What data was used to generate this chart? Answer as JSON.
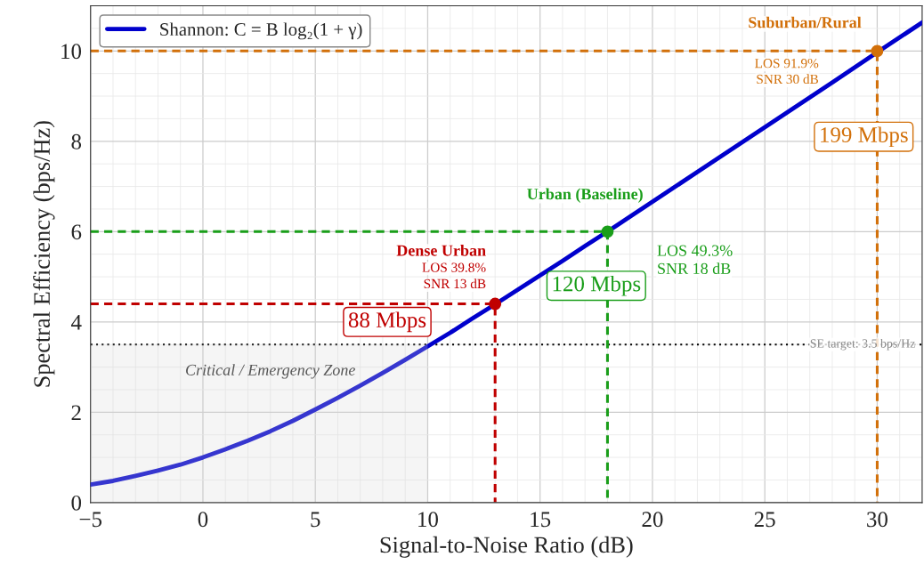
{
  "chart_data": {
    "type": "line",
    "xlabel": "Signal-to-Noise Ratio (dB)",
    "ylabel": "Spectral Efficiency (bps/Hz)",
    "xlim": [
      -5,
      32
    ],
    "ylim": [
      0,
      11
    ],
    "xticks": [
      {
        "value": -5,
        "label": "−5"
      },
      0,
      5,
      10,
      15,
      20,
      25,
      30
    ],
    "yticks": [
      0,
      2,
      4,
      6,
      8,
      10
    ],
    "grid": true,
    "legend": "top left",
    "series": [
      {
        "name": "Shannon: C = B log₂(1 + γ)",
        "color": "#0000cc",
        "line_style": "solid",
        "x": [
          -5,
          -4,
          -3,
          -2,
          -1,
          0,
          1,
          2,
          3,
          4,
          5,
          6,
          7,
          8,
          9,
          10,
          11,
          12,
          13,
          14,
          15,
          16,
          17,
          18,
          19,
          20,
          22,
          24,
          26,
          28,
          30,
          32
        ],
        "values": [
          0.4,
          0.48,
          0.59,
          0.71,
          0.84,
          1.0,
          1.18,
          1.37,
          1.58,
          1.81,
          2.06,
          2.32,
          2.59,
          2.87,
          3.16,
          3.46,
          3.76,
          4.08,
          4.39,
          4.71,
          5.03,
          5.35,
          5.68,
          6.0,
          6.33,
          6.66,
          7.32,
          7.98,
          8.64,
          9.3,
          9.97,
          10.63
        ]
      },
      {
        "color": "#c00000",
        "line_style": "dashed",
        "x": [
          -5,
          13,
          13
        ],
        "values": [
          4.4,
          4.4,
          0
        ]
      },
      {
        "color": "#1a9e1a",
        "line_style": "dashed",
        "x": [
          -5,
          18,
          18
        ],
        "values": [
          6.0,
          6.0,
          0
        ]
      },
      {
        "color": "#d2700a",
        "line_style": "dashed",
        "x": [
          -5,
          30,
          30
        ],
        "values": [
          10.0,
          10.0,
          0
        ]
      },
      {
        "type": "scatter",
        "marker": "circle",
        "x": [
          13,
          18,
          30
        ],
        "values": [
          4.4,
          6.0,
          10.0
        ],
        "colors": [
          "#c00000",
          "#1a9e1a",
          "#d2700a"
        ]
      }
    ],
    "ref_lines": [
      {
        "axis": "y",
        "value": 3.5,
        "label": "SE target: 3.5 bps/Hz",
        "color": "#000000",
        "line_style": "dotted"
      }
    ],
    "bands": [
      {
        "axis": "x",
        "from": -5,
        "to": 10,
        "label": "Critical / Emergency Zone",
        "color": "#d8d8d8"
      }
    ],
    "annotations": [
      "Dense Urban",
      "LOS 39.8%",
      "SNR 13 dB",
      "88 Mbps",
      "Urban (Baseline)",
      "LOS 49.3%",
      "SNR 18 dB",
      "120 Mbps",
      "Suburban/Rural",
      "LOS 91.9%",
      "SNR 30 dB",
      "199 Mbps"
    ]
  }
}
